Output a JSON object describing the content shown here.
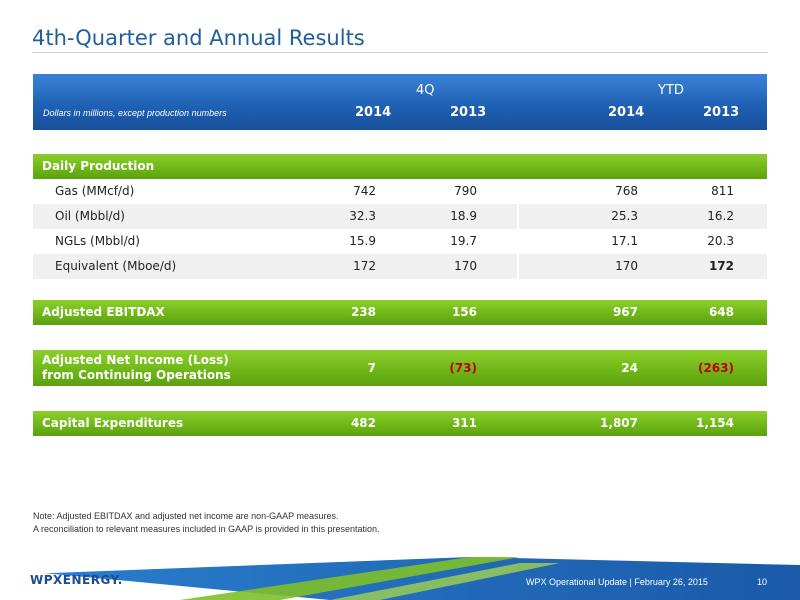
{
  "slide": {
    "title": "4th-Quarter and Annual Results",
    "header": {
      "units_note": "Dollars in millions, except production numbers",
      "group_4q": "4Q",
      "group_ytd": "YTD",
      "years": [
        "2014",
        "2013",
        "2014",
        "2013"
      ]
    },
    "daily_production": {
      "label": "Daily Production",
      "rows": [
        {
          "label": "Gas (MMcf/d)",
          "values": [
            "742",
            "790",
            "768",
            "811"
          ]
        },
        {
          "label": "Oil (Mbbl/d)",
          "values": [
            "32.3",
            "18.9",
            "25.3",
            "16.2"
          ]
        },
        {
          "label": "NGLs (Mbbl/d)",
          "values": [
            "15.9",
            "19.7",
            "17.1",
            "20.3"
          ]
        },
        {
          "label": "Equivalent (Mboe/d)",
          "values": [
            "172",
            "170",
            "170",
            "172"
          ]
        }
      ]
    },
    "ebitdax": {
      "label": "Adjusted EBITDAX",
      "values": [
        "238",
        "156",
        "967",
        "648"
      ]
    },
    "net_income": {
      "label_line1": "Adjusted Net Income (Loss)",
      "label_line2": "from Continuing Operations",
      "values": [
        "7",
        "(73)",
        "24",
        "(263)"
      ]
    },
    "capex": {
      "label": "Capital Expenditures",
      "values": [
        "482",
        "311",
        "1,807",
        "1,154"
      ]
    },
    "note_line1": "Note: Adjusted EBITDAX and adjusted net income are non-GAAP measures.",
    "note_line2": "A reconciliation to relevant measures included in GAAP is provided in this presentation.",
    "footer": {
      "logo": "WPXENERGY.",
      "text": "WPX Operational Update  |  February 26, 2015",
      "page": "10"
    },
    "colors": {
      "header_blue": "#1d5fb2",
      "green": "#6db516",
      "negative": "#c00000",
      "title": "#1e5e9c"
    }
  }
}
